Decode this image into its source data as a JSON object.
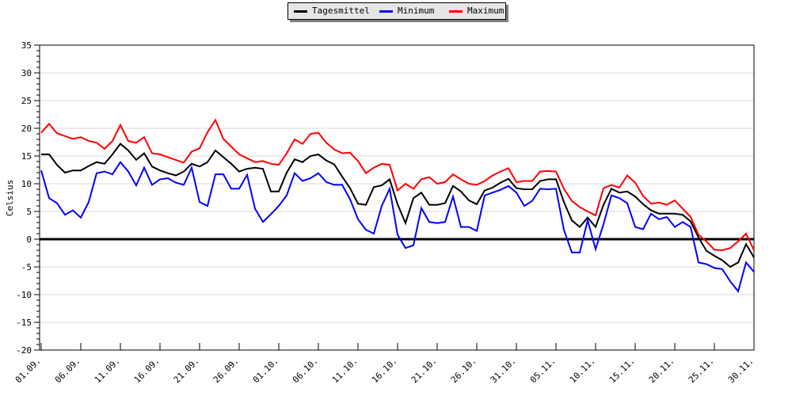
{
  "chart_data": {
    "type": "line",
    "title": "",
    "ylabel": "Celsius",
    "ylim": [
      -20,
      35
    ],
    "ytick_major": 5,
    "ytick_minor": 1,
    "grid": "horizontal-only",
    "zero_line": true,
    "legend_position": "top-center",
    "x_unit": "day",
    "x_label_every_days": 5,
    "x_labels": [
      "01.09.",
      "06.09.",
      "11.09.",
      "16.09.",
      "21.09.",
      "26.09.",
      "01.10.",
      "06.10.",
      "11.10.",
      "16.10.",
      "21.10.",
      "26.10.",
      "31.10.",
      "05.11.",
      "10.11.",
      "15.11.",
      "20.11.",
      "25.11.",
      "30.11."
    ],
    "series": [
      {
        "name": "Tagesmittel",
        "color": "#000000",
        "values": [
          15.3,
          15.3,
          13.4,
          12.0,
          12.4,
          12.4,
          13.2,
          13.9,
          13.6,
          15.3,
          17.2,
          16.0,
          14.3,
          15.5,
          13.1,
          12.4,
          11.9,
          11.5,
          12.2,
          13.6,
          13.1,
          13.9,
          16.0,
          14.8,
          13.6,
          12.2,
          12.7,
          12.9,
          12.7,
          8.6,
          8.6,
          12.0,
          14.4,
          13.9,
          15.0,
          15.3,
          14.2,
          13.5,
          11.3,
          9.2,
          6.4,
          6.2,
          9.4,
          9.7,
          10.8,
          6.3,
          2.9,
          7.4,
          8.4,
          6.2,
          6.2,
          6.5,
          9.6,
          8.6,
          7.0,
          6.3,
          8.8,
          9.3,
          10.2,
          10.9,
          9.2,
          9.0,
          9.0,
          10.5,
          10.8,
          10.8,
          6.7,
          3.4,
          2.2,
          3.9,
          2.2,
          6.2,
          9.1,
          8.4,
          8.6,
          7.7,
          6.3,
          5.2,
          4.6,
          4.6,
          4.6,
          4.4,
          3.2,
          0.3,
          -2.1,
          -3.0,
          -3.8,
          -5.0,
          -4.2,
          -0.9,
          -3.3
        ]
      },
      {
        "name": "Minimum",
        "color": "#0000ff",
        "values": [
          12.4,
          7.4,
          6.5,
          4.4,
          5.2,
          3.9,
          6.7,
          11.9,
          12.2,
          11.7,
          13.9,
          12.2,
          9.7,
          12.9,
          9.8,
          10.8,
          11.0,
          10.2,
          9.8,
          12.9,
          6.7,
          6.0,
          11.7,
          11.7,
          9.1,
          9.1,
          11.6,
          5.5,
          3.1,
          4.5,
          6.0,
          7.9,
          11.9,
          10.5,
          11.0,
          11.9,
          10.3,
          9.8,
          9.8,
          7.2,
          3.6,
          1.7,
          1.0,
          6.0,
          9.1,
          0.8,
          -1.6,
          -1.1,
          5.6,
          3.1,
          2.9,
          3.1,
          7.7,
          2.2,
          2.2,
          1.5,
          7.9,
          8.4,
          8.9,
          9.6,
          8.4,
          6.0,
          6.9,
          9.1,
          9.0,
          9.1,
          1.7,
          -2.4,
          -2.4,
          3.4,
          -1.8,
          2.7,
          7.9,
          7.4,
          6.5,
          2.2,
          1.8,
          4.6,
          3.6,
          4.0,
          2.2,
          3.1,
          2.2,
          -4.2,
          -4.5,
          -5.2,
          -5.4,
          -7.6,
          -9.4,
          -4.2,
          -5.9
        ]
      },
      {
        "name": "Maximum",
        "color": "#ff0000",
        "values": [
          19.2,
          20.8,
          19.1,
          18.6,
          18.1,
          18.4,
          17.7,
          17.4,
          16.3,
          17.7,
          20.6,
          17.7,
          17.4,
          18.4,
          15.5,
          15.3,
          14.8,
          14.3,
          13.8,
          15.8,
          16.4,
          19.3,
          21.5,
          18.1,
          16.7,
          15.3,
          14.6,
          13.9,
          14.1,
          13.6,
          13.4,
          15.5,
          18.0,
          17.2,
          19.0,
          19.2,
          17.4,
          16.2,
          15.5,
          15.6,
          14.1,
          11.9,
          12.9,
          13.6,
          13.4,
          8.8,
          10.0,
          9.1,
          10.8,
          11.2,
          10.0,
          10.3,
          11.7,
          10.8,
          10.0,
          9.8,
          10.5,
          11.5,
          12.2,
          12.8,
          10.3,
          10.5,
          10.5,
          12.2,
          12.3,
          12.2,
          9.1,
          6.9,
          5.8,
          5.0,
          4.3,
          9.2,
          9.8,
          9.3,
          11.5,
          10.2,
          7.8,
          6.4,
          6.6,
          6.2,
          7.0,
          5.5,
          4.0,
          0.8,
          -0.4,
          -1.9,
          -2.0,
          -1.6,
          -0.4,
          1.0,
          -2.0
        ]
      }
    ],
    "colors": {
      "grid": "#d8d8d8",
      "axis": "#000000",
      "zero_line": "#000000",
      "legend_bg": "#e6e6e6",
      "legend_shadow": "#808080",
      "background": "#ffffff"
    }
  },
  "legend": {
    "items": [
      {
        "label": "Tagesmittel",
        "color": "#000000"
      },
      {
        "label": "Minimum",
        "color": "#0000ff"
      },
      {
        "label": "Maximum",
        "color": "#ff0000"
      }
    ]
  }
}
